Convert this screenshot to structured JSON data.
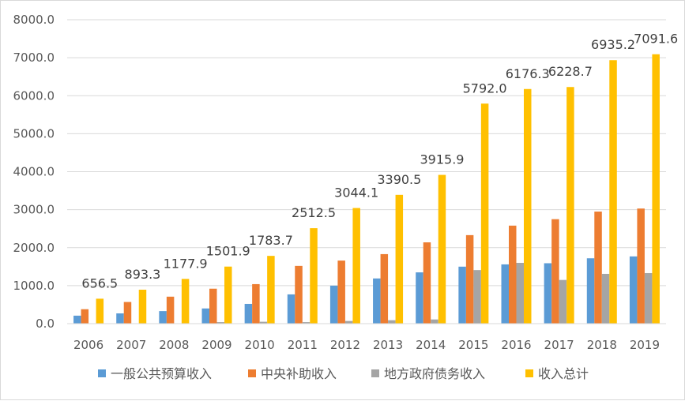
{
  "chart_data": {
    "type": "bar",
    "categories": [
      "2006",
      "2007",
      "2008",
      "2009",
      "2010",
      "2011",
      "2012",
      "2013",
      "2014",
      "2015",
      "2016",
      "2017",
      "2018",
      "2019"
    ],
    "series": [
      {
        "name": "一般公共预算收入",
        "color": "#5B9BD5",
        "values": [
          210,
          270,
          330,
          400,
          520,
          770,
          1000,
          1190,
          1350,
          1500,
          1560,
          1590,
          1720,
          1770
        ]
      },
      {
        "name": "中央补助收入",
        "color": "#ED7D31",
        "values": [
          380,
          570,
          710,
          920,
          1040,
          1520,
          1660,
          1830,
          2140,
          2330,
          2580,
          2750,
          2950,
          3030
        ]
      },
      {
        "name": "地方政府债务收入",
        "color": "#A5A5A5",
        "values": [
          0,
          0,
          0,
          40,
          50,
          40,
          70,
          90,
          110,
          1410,
          1600,
          1150,
          1310,
          1330
        ]
      },
      {
        "name": "收入总计",
        "color": "#FFC000",
        "values": [
          656.5,
          893.3,
          1177.9,
          1501.9,
          1783.7,
          2512.5,
          3044.1,
          3390.5,
          3915.9,
          5792.0,
          6176.3,
          6228.7,
          6935.2,
          7091.6
        ],
        "labels": [
          "656.5",
          "893.3",
          "1177.9",
          "1501.9",
          "1783.7",
          "2512.5",
          "3044.1",
          "3390.5",
          "3915.9",
          "5792.0",
          "6176.3",
          "6228.7",
          "6935.2",
          "7091.6"
        ]
      }
    ],
    "yticks": [
      "0.0",
      "1000.0",
      "2000.0",
      "3000.0",
      "4000.0",
      "5000.0",
      "6000.0",
      "7000.0",
      "8000.0"
    ],
    "ylim": [
      0,
      8000
    ],
    "grid": true,
    "legend": "bottom"
  }
}
